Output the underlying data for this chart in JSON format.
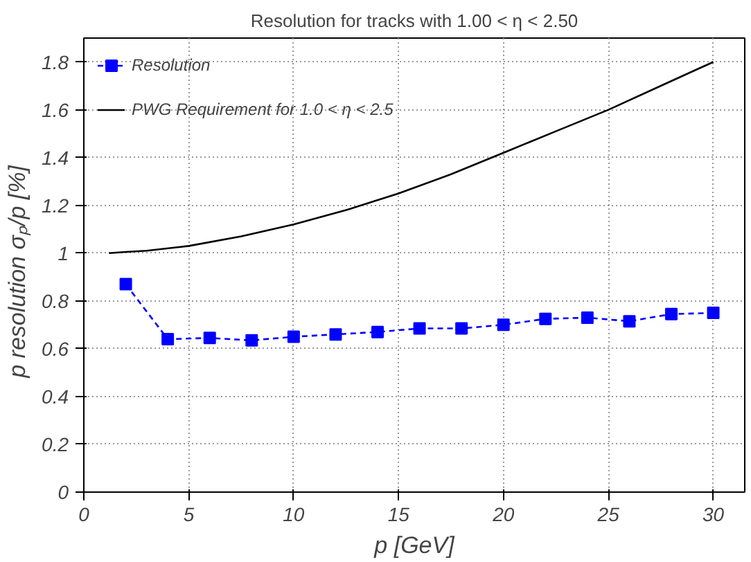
{
  "chart_data": {
    "type": "line",
    "title": "Resolution for tracks with 1.00 < η < 2.50",
    "xlabel": "p [GeV]",
    "ylabel": "p resolution  σₚ/p  [%]",
    "xlim": [
      0,
      31.5
    ],
    "xticks": [
      0,
      5,
      10,
      15,
      20,
      25,
      30
    ],
    "ylim": [
      0,
      1.9
    ],
    "yticks": [
      0,
      0.2,
      0.4,
      0.6,
      0.8,
      1,
      1.2,
      1.4,
      1.6,
      1.8
    ],
    "grid": true,
    "legend": "top left",
    "series": [
      {
        "name": "Resolution",
        "color": "#0000ff",
        "marker": "square",
        "line_style": "dashed",
        "x": [
          2,
          4,
          6,
          8,
          10,
          12,
          14,
          16,
          18,
          20,
          22,
          24,
          26,
          28,
          30
        ],
        "values": [
          0.87,
          0.64,
          0.645,
          0.635,
          0.65,
          0.66,
          0.67,
          0.685,
          0.685,
          0.7,
          0.725,
          0.73,
          0.715,
          0.745,
          0.75
        ]
      },
      {
        "name": "PWG Requirement for 1.0 < η < 2.5",
        "color": "#000000",
        "marker": "none",
        "line_style": "solid",
        "x": [
          1.2,
          2,
          3,
          5,
          7.5,
          10,
          12.5,
          15,
          17.5,
          20,
          22.5,
          25,
          27.5,
          30
        ],
        "values": [
          1.0,
          1.005,
          1.01,
          1.03,
          1.07,
          1.12,
          1.18,
          1.25,
          1.33,
          1.42,
          1.51,
          1.6,
          1.7,
          1.8
        ]
      }
    ]
  }
}
